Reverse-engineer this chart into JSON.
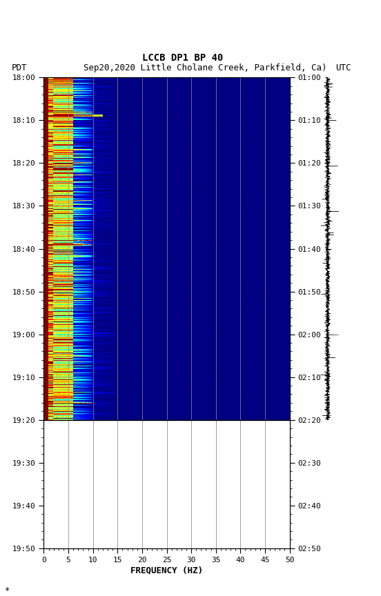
{
  "title_line1": "LCCB DP1 BP 40",
  "title_line2_left": "PDT",
  "title_line2_mid": "Sep20,2020 Little Cholane Creek, Parkfield, Ca)",
  "title_line2_right": "UTC",
  "xlabel": "FREQUENCY (HZ)",
  "freq_min": 0,
  "freq_max": 50,
  "pdt_labels": [
    "18:00",
    "18:10",
    "18:20",
    "18:30",
    "18:40",
    "18:50",
    "19:00",
    "19:10",
    "19:20",
    "19:30",
    "19:40",
    "19:50"
  ],
  "utc_labels": [
    "01:00",
    "01:10",
    "01:20",
    "01:30",
    "01:40",
    "01:50",
    "02:00",
    "02:10",
    "02:20",
    "02:30",
    "02:40",
    "02:50"
  ],
  "xticks": [
    0,
    5,
    10,
    15,
    20,
    25,
    30,
    35,
    40,
    45,
    50
  ],
  "vgrid_freqs": [
    5,
    10,
    15,
    20,
    25,
    30,
    35,
    40,
    45
  ],
  "background_color": "#ffffff",
  "spectrogram_bg_color": "#000080",
  "colormap": "jet",
  "total_minutes": 110,
  "active_minutes": 80,
  "n_time": 550,
  "n_freq": 500
}
